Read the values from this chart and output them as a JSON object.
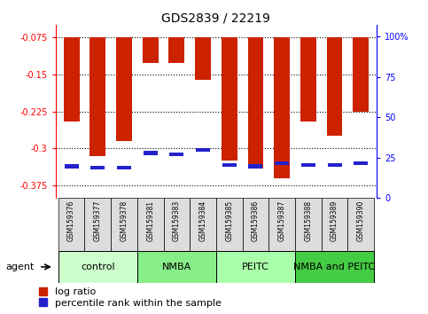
{
  "title": "GDS2839 / 22219",
  "samples": [
    "GSM159376",
    "GSM159377",
    "GSM159378",
    "GSM159381",
    "GSM159383",
    "GSM159384",
    "GSM159385",
    "GSM159386",
    "GSM159387",
    "GSM159388",
    "GSM159389",
    "GSM159390"
  ],
  "log_ratio": [
    -0.245,
    -0.315,
    -0.285,
    -0.127,
    -0.127,
    -0.16,
    -0.325,
    -0.34,
    -0.36,
    -0.245,
    -0.275,
    -0.225
  ],
  "percentile": [
    13,
    12,
    12,
    22,
    21,
    24,
    14,
    13,
    15,
    14,
    14,
    15
  ],
  "groups": [
    {
      "label": "control",
      "start": 0,
      "end": 3,
      "color": "#ccffcc"
    },
    {
      "label": "NMBA",
      "start": 3,
      "end": 6,
      "color": "#88ee88"
    },
    {
      "label": "PEITC",
      "start": 6,
      "end": 9,
      "color": "#aaffaa"
    },
    {
      "label": "NMBA and PEITC",
      "start": 9,
      "end": 12,
      "color": "#44cc44"
    }
  ],
  "ylim_left": [
    -0.4,
    -0.05
  ],
  "yticks_left": [
    -0.375,
    -0.3,
    -0.225,
    -0.15,
    -0.075
  ],
  "ylim_right": [
    0,
    107
  ],
  "yticks_right": [
    0,
    25,
    50,
    75,
    100
  ],
  "ytick_labels_right": [
    "0",
    "25",
    "50",
    "75",
    "100%"
  ],
  "bar_color_red": "#cc2200",
  "bar_color_blue": "#2222cc",
  "background_color": "#ffffff",
  "title_fontsize": 10,
  "tick_fontsize": 7,
  "label_fontsize": 8,
  "group_fontsize": 8,
  "agent_fontsize": 8
}
